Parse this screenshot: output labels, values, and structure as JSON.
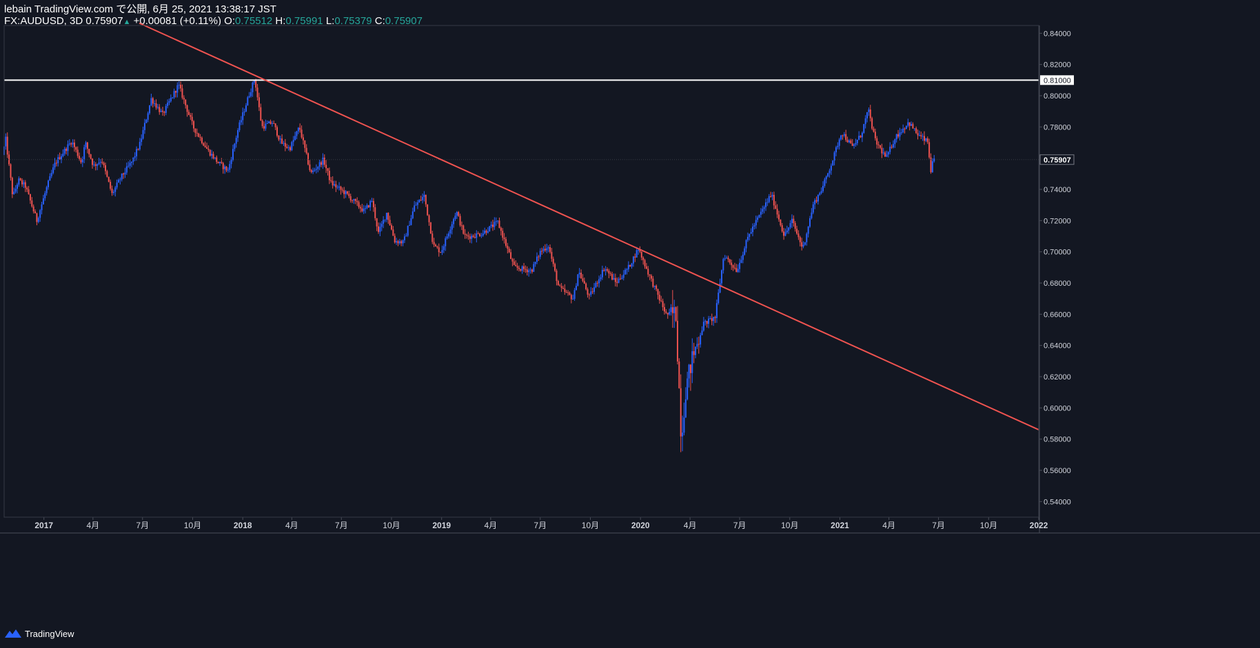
{
  "header": {
    "line1": "lebain TradingView.com で公開, 6月 25, 2021 13:38:17 JST",
    "symbol": "FX:AUDUSD, 3D",
    "last": "0.75907",
    "change": "+0.00081 (+0.11%)",
    "o_label": "O:",
    "o": "0.75512",
    "h_label": "H:",
    "h": "0.75991",
    "l_label": "L:",
    "l": "0.75379",
    "c_label": "C:",
    "c": "0.75907"
  },
  "footer": {
    "brand": "TradingView"
  },
  "colors": {
    "background": "#131722",
    "up": "#2962ff",
    "down": "#ef5350",
    "trendline": "#ef5350",
    "level": "#ffffff",
    "axis_text": "#d1d4dc",
    "grid": "#2a2e39"
  },
  "chart_data": {
    "type": "candlestick",
    "yaxis": {
      "range": [
        0.53,
        0.845
      ],
      "ticks": [
        "0.84000",
        "0.82000",
        "0.80000",
        "0.78000",
        "0.76000",
        "0.74000",
        "0.72000",
        "0.70000",
        "0.68000",
        "0.66000",
        "0.64000",
        "0.62000",
        "0.60000",
        "0.58000",
        "0.56000",
        "0.54000"
      ],
      "tick_values": [
        0.84,
        0.82,
        0.8,
        0.78,
        0.76,
        0.74,
        0.72,
        0.7,
        0.68,
        0.66,
        0.64,
        0.62,
        0.6,
        0.58,
        0.56,
        0.54
      ],
      "level_label": "0.81000",
      "last_label": "0.75907"
    },
    "xaxis": {
      "range": [
        "2016-10-20",
        "2022-01-01"
      ],
      "ticks": [
        {
          "date": "2017-01-01",
          "label": "2017",
          "bold": true
        },
        {
          "date": "2017-04-01",
          "label": "4月"
        },
        {
          "date": "2017-07-01",
          "label": "7月"
        },
        {
          "date": "2017-10-01",
          "label": "10月"
        },
        {
          "date": "2018-01-01",
          "label": "2018",
          "bold": true
        },
        {
          "date": "2018-04-01",
          "label": "4月"
        },
        {
          "date": "2018-07-01",
          "label": "7月"
        },
        {
          "date": "2018-10-01",
          "label": "10月"
        },
        {
          "date": "2019-01-01",
          "label": "2019",
          "bold": true
        },
        {
          "date": "2019-04-01",
          "label": "4月"
        },
        {
          "date": "2019-07-01",
          "label": "7月"
        },
        {
          "date": "2019-10-01",
          "label": "10月"
        },
        {
          "date": "2020-01-01",
          "label": "2020",
          "bold": true
        },
        {
          "date": "2020-04-01",
          "label": "4月"
        },
        {
          "date": "2020-07-01",
          "label": "7月"
        },
        {
          "date": "2020-10-01",
          "label": "10月"
        },
        {
          "date": "2021-01-01",
          "label": "2021",
          "bold": true
        },
        {
          "date": "2021-04-01",
          "label": "4月"
        },
        {
          "date": "2021-07-01",
          "label": "7月"
        },
        {
          "date": "2021-10-01",
          "label": "10月"
        },
        {
          "date": "2022-01-01",
          "label": "2022",
          "bold": true
        }
      ]
    },
    "candle_interval_days": 3,
    "price_path": [
      [
        "2016-10-20",
        0.762
      ],
      [
        "2016-10-26",
        0.772
      ],
      [
        "2016-11-08",
        0.735
      ],
      [
        "2016-11-18",
        0.746
      ],
      [
        "2016-12-01",
        0.742
      ],
      [
        "2016-12-22",
        0.72
      ],
      [
        "2017-01-10",
        0.742
      ],
      [
        "2017-01-25",
        0.757
      ],
      [
        "2017-02-24",
        0.771
      ],
      [
        "2017-03-14",
        0.757
      ],
      [
        "2017-03-21",
        0.77
      ],
      [
        "2017-04-05",
        0.755
      ],
      [
        "2017-04-20",
        0.759
      ],
      [
        "2017-05-09",
        0.737
      ],
      [
        "2017-05-26",
        0.748
      ],
      [
        "2017-06-15",
        0.758
      ],
      [
        "2017-06-29",
        0.769
      ],
      [
        "2017-07-20",
        0.798
      ],
      [
        "2017-08-10",
        0.788
      ],
      [
        "2017-09-08",
        0.807
      ],
      [
        "2017-10-05",
        0.78
      ],
      [
        "2017-11-01",
        0.765
      ],
      [
        "2017-11-20",
        0.757
      ],
      [
        "2017-12-08",
        0.752
      ],
      [
        "2017-12-26",
        0.778
      ],
      [
        "2018-01-15",
        0.8
      ],
      [
        "2018-01-26",
        0.811
      ],
      [
        "2018-02-08",
        0.78
      ],
      [
        "2018-02-28",
        0.783
      ],
      [
        "2018-03-15",
        0.77
      ],
      [
        "2018-03-31",
        0.766
      ],
      [
        "2018-04-18",
        0.78
      ],
      [
        "2018-05-09",
        0.75
      ],
      [
        "2018-06-01",
        0.759
      ],
      [
        "2018-06-15",
        0.744
      ],
      [
        "2018-07-10",
        0.738
      ],
      [
        "2018-08-15",
        0.726
      ],
      [
        "2018-08-29",
        0.733
      ],
      [
        "2018-09-10",
        0.712
      ],
      [
        "2018-09-25",
        0.725
      ],
      [
        "2018-10-10",
        0.707
      ],
      [
        "2018-10-26",
        0.706
      ],
      [
        "2018-11-15",
        0.729
      ],
      [
        "2018-12-03",
        0.736
      ],
      [
        "2018-12-20",
        0.704
      ],
      [
        "2019-01-03",
        0.7
      ],
      [
        "2019-01-31",
        0.726
      ],
      [
        "2019-02-15",
        0.71
      ],
      [
        "2019-03-01",
        0.71
      ],
      [
        "2019-03-20",
        0.712
      ],
      [
        "2019-04-17",
        0.719
      ],
      [
        "2019-05-17",
        0.69
      ],
      [
        "2019-06-18",
        0.688
      ],
      [
        "2019-07-04",
        0.7
      ],
      [
        "2019-07-19",
        0.704
      ],
      [
        "2019-08-07",
        0.677
      ],
      [
        "2019-09-03",
        0.67
      ],
      [
        "2019-09-12",
        0.688
      ],
      [
        "2019-10-02",
        0.671
      ],
      [
        "2019-10-30",
        0.69
      ],
      [
        "2019-11-20",
        0.68
      ],
      [
        "2019-12-13",
        0.69
      ],
      [
        "2019-12-31",
        0.702
      ],
      [
        "2020-01-20",
        0.685
      ],
      [
        "2020-02-20",
        0.66
      ],
      [
        "2020-03-09",
        0.66
      ],
      [
        "2020-03-19",
        0.58
      ],
      [
        "2020-03-27",
        0.612
      ],
      [
        "2020-04-09",
        0.633
      ],
      [
        "2020-04-29",
        0.654
      ],
      [
        "2020-05-20",
        0.658
      ],
      [
        "2020-06-05",
        0.698
      ],
      [
        "2020-06-29",
        0.688
      ],
      [
        "2020-07-21",
        0.711
      ],
      [
        "2020-08-31",
        0.737
      ],
      [
        "2020-09-24",
        0.71
      ],
      [
        "2020-10-08",
        0.72
      ],
      [
        "2020-10-28",
        0.702
      ],
      [
        "2020-11-16",
        0.73
      ],
      [
        "2020-12-04",
        0.742
      ],
      [
        "2020-12-23",
        0.76
      ],
      [
        "2021-01-07",
        0.777
      ],
      [
        "2021-01-27",
        0.767
      ],
      [
        "2021-02-12",
        0.775
      ],
      [
        "2021-02-25",
        0.791
      ],
      [
        "2021-03-10",
        0.771
      ],
      [
        "2021-03-30",
        0.76
      ],
      [
        "2021-04-15",
        0.773
      ],
      [
        "2021-05-10",
        0.783
      ],
      [
        "2021-05-27",
        0.775
      ],
      [
        "2021-06-15",
        0.77
      ],
      [
        "2021-06-19",
        0.751
      ],
      [
        "2021-06-25",
        0.759
      ]
    ],
    "annotations": {
      "horizontal_level": 0.81,
      "trendline": {
        "from": {
          "date": "2017-06-25",
          "price": 0.8465
        },
        "to": {
          "date": "2022-01-01",
          "price": 0.586
        }
      }
    },
    "grid": false,
    "legend": "none"
  }
}
